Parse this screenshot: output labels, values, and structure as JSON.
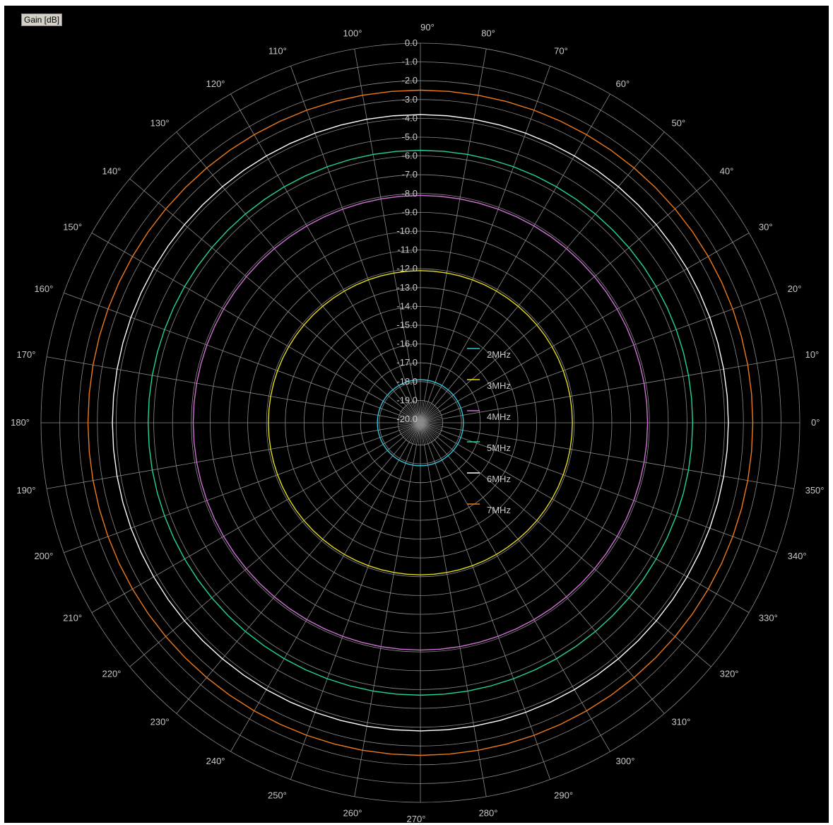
{
  "badge": {
    "label": "Gain [dB]"
  },
  "chart_data": {
    "type": "polar",
    "radial_axis": {
      "label": "Gain [dB]",
      "range": [
        -20.0,
        0.0
      ],
      "ticks": [
        "0.0",
        "-1.0",
        "-2.0",
        "-3.0",
        "-4.0",
        "-5.0",
        "-6.0",
        "-7.0",
        "-8.0",
        "-9.0",
        "-10.0",
        "-11.0",
        "-12.0",
        "-13.0",
        "-14.0",
        "-15.0",
        "-16.0",
        "-17.0",
        "-18.0",
        "-19.0",
        "-20.0"
      ]
    },
    "angular_axis": {
      "unit": "°",
      "ticks": [
        "0°",
        "10°",
        "20°",
        "30°",
        "40°",
        "50°",
        "60°",
        "70°",
        "80°",
        "90°",
        "100°",
        "110°",
        "120°",
        "130°",
        "140°",
        "150°",
        "160°",
        "170°",
        "180°",
        "190°",
        "200°",
        "210°",
        "220°",
        "230°",
        "240°",
        "250°",
        "260°",
        "270°",
        "280°",
        "290°",
        "300°",
        "310°",
        "320°",
        "330°",
        "340°",
        "350°"
      ],
      "tick_values": [
        0,
        10,
        20,
        30,
        40,
        50,
        60,
        70,
        80,
        90,
        100,
        110,
        120,
        130,
        140,
        150,
        160,
        170,
        180,
        190,
        200,
        210,
        220,
        230,
        240,
        250,
        260,
        270,
        280,
        290,
        300,
        310,
        320,
        330,
        340,
        350
      ]
    },
    "grid": true,
    "legend": "center-right",
    "series": [
      {
        "name": "2MHz",
        "color": "#33c4d8",
        "gain_db": -17.9
      },
      {
        "name": "3MHz",
        "color": "#e6dc1e",
        "gain_db": -12.1
      },
      {
        "name": "4MHz",
        "color": "#d070d8",
        "gain_db": -8.1
      },
      {
        "name": "5MHz",
        "color": "#22d890",
        "gain_db": -5.7
      },
      {
        "name": "6MHz",
        "color": "#ffffff",
        "gain_db": -3.8
      },
      {
        "name": "7MHz",
        "color": "#f07a18",
        "gain_db": -2.5
      }
    ]
  }
}
